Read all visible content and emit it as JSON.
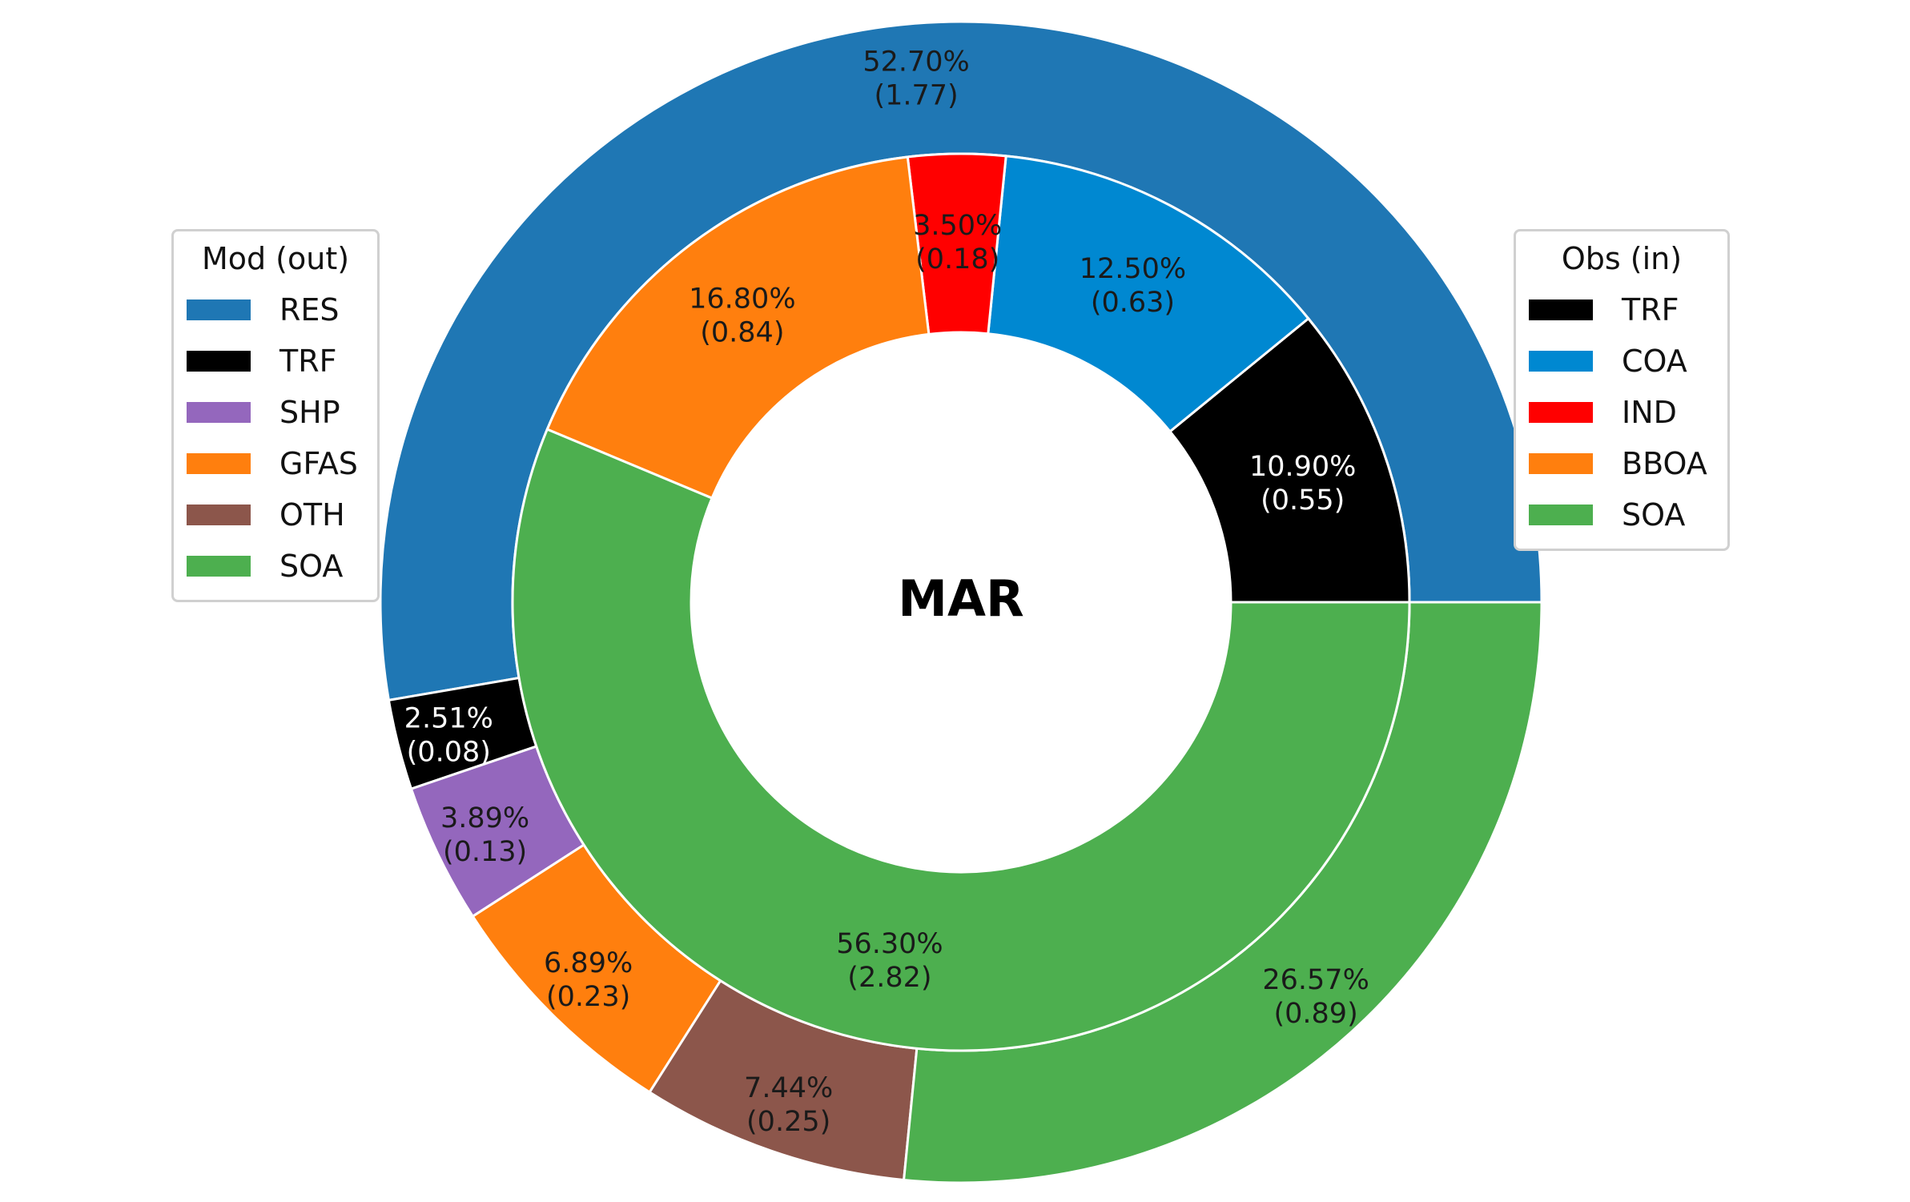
{
  "chart_data": {
    "type": "pie",
    "title": "MAR",
    "outer_ring": {
      "legend_title": "Mod (out)",
      "series": [
        {
          "name": "RES",
          "percent": 52.7,
          "value": 1.77,
          "color": "#1f77b4",
          "label_color": "#1a1a1a"
        },
        {
          "name": "TRF",
          "percent": 2.51,
          "value": 0.08,
          "color": "#000000",
          "label_color": "#ffffff"
        },
        {
          "name": "SHP",
          "percent": 3.89,
          "value": 0.13,
          "color": "#9467bd",
          "label_color": "#1a1a1a"
        },
        {
          "name": "GFAS",
          "percent": 6.89,
          "value": 0.23,
          "color": "#ff7f0e",
          "label_color": "#1a1a1a"
        },
        {
          "name": "OTH",
          "percent": 7.44,
          "value": 0.25,
          "color": "#8c564b",
          "label_color": "#1a1a1a"
        },
        {
          "name": "SOA",
          "percent": 26.57,
          "value": 0.89,
          "color": "#4daf4f",
          "label_color": "#1a1a1a"
        }
      ],
      "labels": [
        {
          "pct": "52.70%",
          "val": "(1.77)"
        },
        {
          "pct": "2.51%",
          "val": "(0.08)"
        },
        {
          "pct": "3.89%",
          "val": "(0.13)"
        },
        {
          "pct": "6.89%",
          "val": "(0.23)"
        },
        {
          "pct": "7.44%",
          "val": "(0.25)"
        },
        {
          "pct": "26.57%",
          "val": "(0.89)"
        }
      ]
    },
    "inner_ring": {
      "legend_title": "Obs (in)",
      "series": [
        {
          "name": "TRF",
          "percent": 10.9,
          "value": 0.55,
          "color": "#000000",
          "label_color": "#ffffff"
        },
        {
          "name": "COA",
          "percent": 12.5,
          "value": 0.63,
          "color": "#0088d1",
          "label_color": "#1a1a1a"
        },
        {
          "name": "IND",
          "percent": 3.5,
          "value": 0.18,
          "color": "#ff0000",
          "label_color": "#1a1a1a"
        },
        {
          "name": "BBOA",
          "percent": 16.8,
          "value": 0.84,
          "color": "#ff7f0e",
          "label_color": "#1a1a1a"
        },
        {
          "name": "SOA",
          "percent": 56.3,
          "value": 2.82,
          "color": "#4daf4f",
          "label_color": "#1a1a1a"
        }
      ],
      "labels": [
        {
          "pct": "10.90%",
          "val": "(0.55)"
        },
        {
          "pct": "12.50%",
          "val": "(0.63)"
        },
        {
          "pct": "3.50%",
          "val": "(0.18)"
        },
        {
          "pct": "16.80%",
          "val": "(0.84)"
        },
        {
          "pct": "56.30%",
          "val": "(2.82)"
        }
      ]
    }
  }
}
